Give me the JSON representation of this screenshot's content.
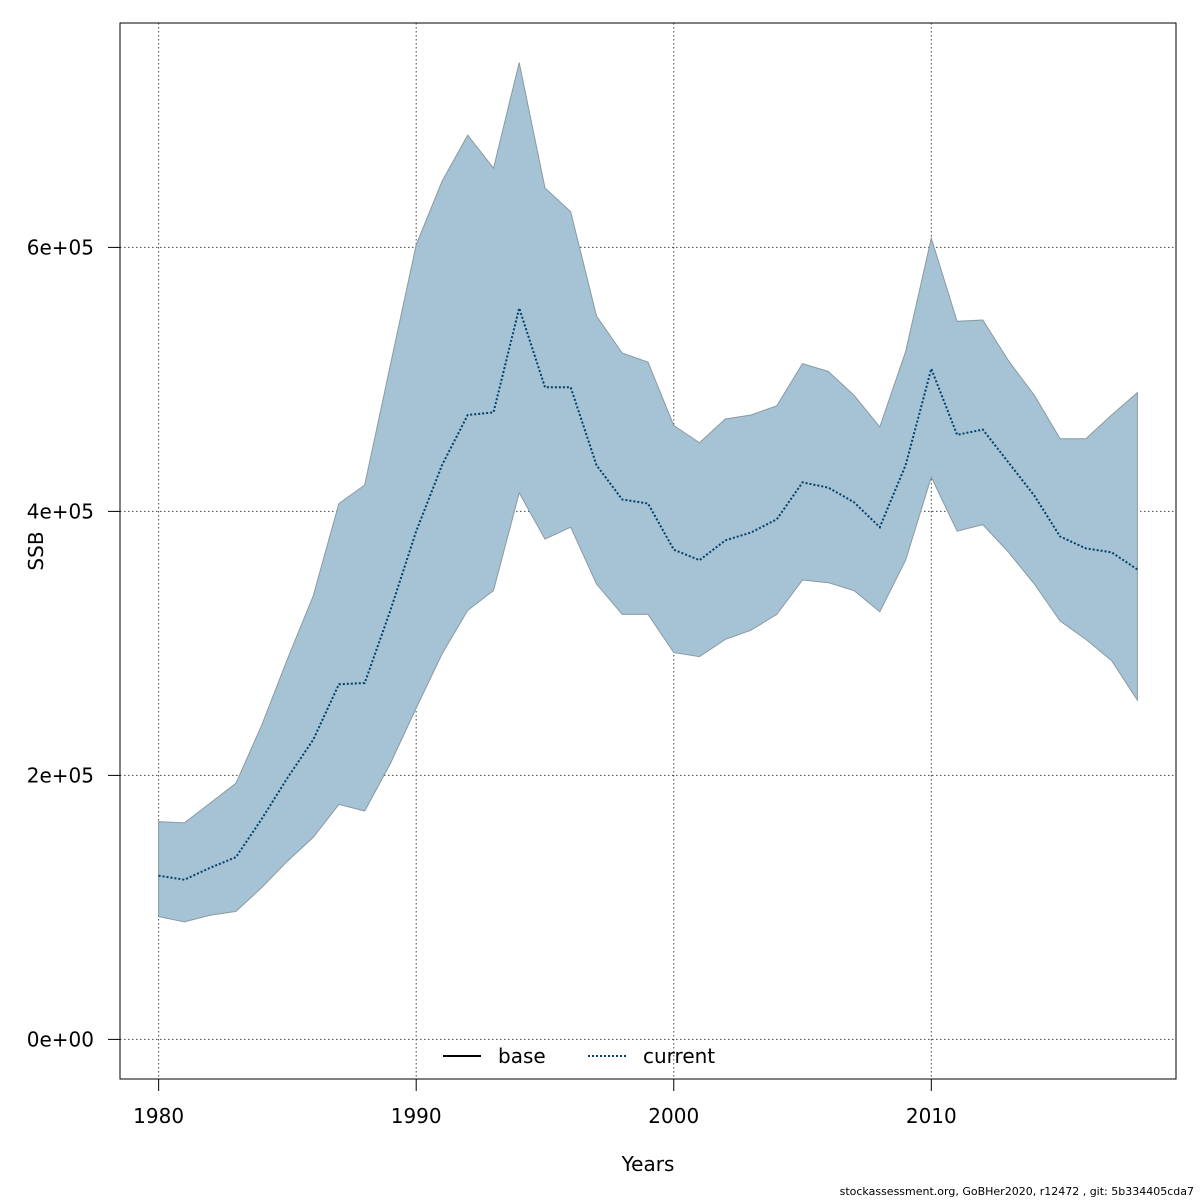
{
  "chart_data": {
    "type": "area",
    "xlabel": "Years",
    "ylabel": "SSB",
    "xlim": [
      1978.5,
      2019.5
    ],
    "ylim": [
      -30000,
      770000
    ],
    "x_ticks": [
      {
        "value": 1980,
        "label": "1980"
      },
      {
        "value": 1990,
        "label": "1990"
      },
      {
        "value": 2000,
        "label": "2000"
      },
      {
        "value": 2010,
        "label": "2010"
      }
    ],
    "y_ticks": [
      {
        "value": 0,
        "label": "0e+00"
      },
      {
        "value": 200000,
        "label": "2e+05"
      },
      {
        "value": 400000,
        "label": "4e+05"
      },
      {
        "value": 600000,
        "label": "6e+05"
      }
    ],
    "grid": true,
    "legend_position": "bottom",
    "legend": [
      {
        "name": "base",
        "style": "solid",
        "color": "#000000"
      },
      {
        "name": "current",
        "style": "dotted",
        "color": "#00406b"
      }
    ],
    "x": [
      1980,
      1981,
      1982,
      1983,
      1984,
      1985,
      1986,
      1987,
      1988,
      1989,
      1990,
      1991,
      1992,
      1993,
      1994,
      1995,
      1996,
      1997,
      1998,
      1999,
      2000,
      2001,
      2002,
      2003,
      2004,
      2005,
      2006,
      2007,
      2008,
      2009,
      2010,
      2011,
      2012,
      2013,
      2014,
      2015,
      2016,
      2017,
      2018
    ],
    "series": [
      {
        "name": "current",
        "values": [
          124000,
          121000,
          130000,
          138000,
          167000,
          198000,
          227000,
          269000,
          270000,
          325000,
          385000,
          435000,
          473000,
          475000,
          554000,
          494000,
          494000,
          435000,
          409000,
          406000,
          371000,
          363000,
          378000,
          384000,
          394000,
          422000,
          418000,
          407000,
          388000,
          435000,
          508000,
          458000,
          462000,
          437000,
          412000,
          381000,
          372000,
          369000,
          356000
        ]
      }
    ],
    "confidence_band": {
      "lower": [
        93000,
        89000,
        94000,
        97000,
        115000,
        135000,
        153000,
        178000,
        173000,
        209000,
        251000,
        292000,
        325000,
        340000,
        414000,
        379000,
        388000,
        345000,
        322000,
        322000,
        293000,
        290000,
        303000,
        310000,
        322000,
        348000,
        346000,
        340000,
        324000,
        363000,
        426000,
        385000,
        390000,
        369000,
        345000,
        317000,
        303000,
        287000,
        257000
      ],
      "upper": [
        165000,
        164000,
        179000,
        194000,
        238000,
        288000,
        336000,
        406000,
        420000,
        511000,
        602000,
        650000,
        685000,
        660000,
        740000,
        645000,
        627000,
        548000,
        520000,
        513000,
        465000,
        452000,
        470000,
        473000,
        480000,
        512000,
        506000,
        488000,
        464000,
        521000,
        607000,
        544000,
        545000,
        514000,
        488000,
        455000,
        455000,
        473000,
        490000
      ],
      "color": "#a5c3d4",
      "stroke": "#8a9aa3"
    }
  },
  "footnote": "stockassessment.org, GoBHer2020, r12472 , git: 5b334405cda7"
}
